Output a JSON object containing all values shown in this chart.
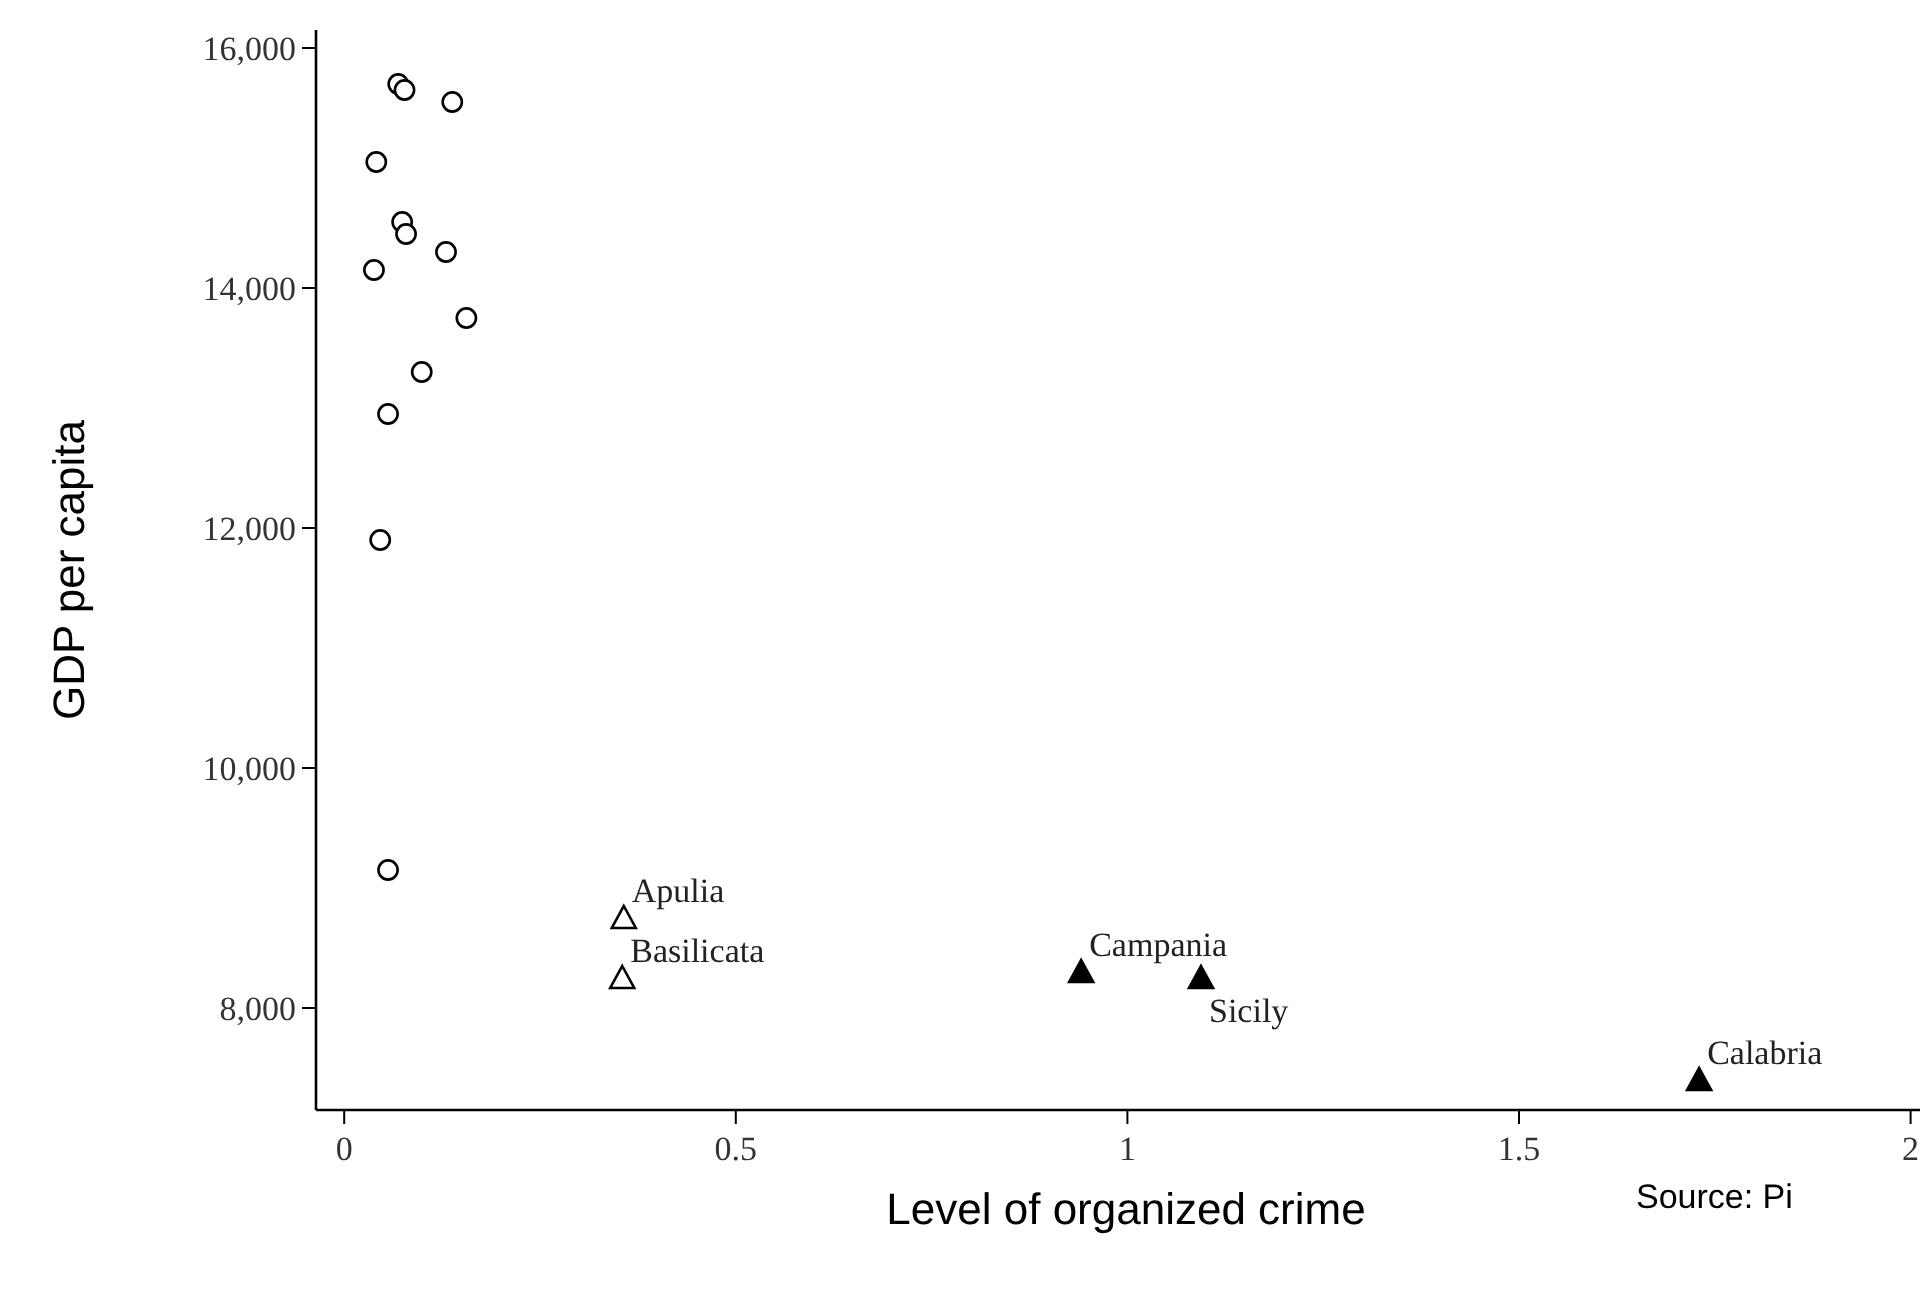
{
  "chart_data": {
    "type": "scatter",
    "xlabel": "Level of organized crime",
    "ylabel": "GDP per capita",
    "xlim": [
      -0.036,
      2.012
    ],
    "ylim": [
      7150,
      16150
    ],
    "xticks": [
      0,
      0.5,
      1,
      1.5,
      2
    ],
    "yticks": [
      {
        "value": 8000,
        "label": "8,000"
      },
      {
        "value": 10000,
        "label": "10,000"
      },
      {
        "value": 12000,
        "label": "12,000"
      },
      {
        "value": 14000,
        "label": "14,000"
      },
      {
        "value": 16000,
        "label": "16,000"
      }
    ],
    "grid": false,
    "series": [
      {
        "marker": "circle",
        "color": "#ffffff",
        "x": [
          0.069,
          0.077,
          0.138,
          0.041,
          0.074,
          0.079,
          0.13,
          0.038,
          0.156,
          0.099,
          0.056,
          0.046,
          0.056
        ],
        "values": [
          15700,
          15650,
          15550,
          15050,
          14550,
          14450,
          14300,
          14150,
          13750,
          13300,
          12950,
          11900,
          9150
        ]
      },
      {
        "marker": "triangle",
        "color": "#ffffff",
        "x": [
          0.357,
          0.355
        ],
        "values": [
          8750,
          8250
        ]
      },
      {
        "marker": "triangle",
        "color": "#000000",
        "x": [
          0.941,
          1.094,
          1.73
        ],
        "values": [
          8300,
          8250,
          7400
        ]
      }
    ],
    "annotations": [
      {
        "text": "Apulia",
        "x": 0.357,
        "y": 8750
      },
      {
        "text": "Basilicata",
        "x": 0.355,
        "y": 8250
      },
      {
        "text": "Campania",
        "x": 0.941,
        "y": 8300
      },
      {
        "text": "Sicily",
        "x": 1.094,
        "y": 8250
      },
      {
        "text": "Calabria",
        "x": 1.73,
        "y": 7400
      },
      "Source: Pi"
    ]
  }
}
